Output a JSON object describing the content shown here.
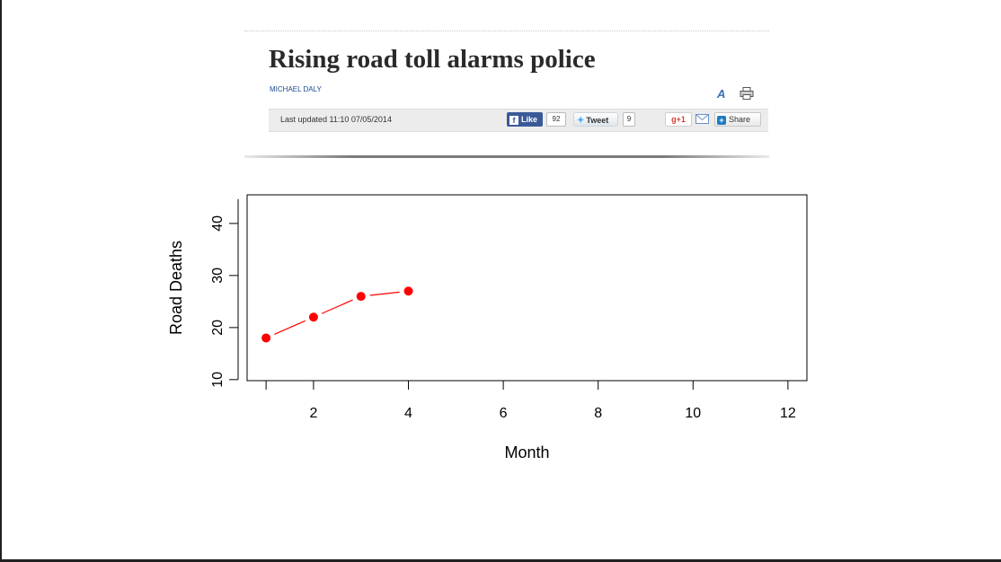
{
  "article": {
    "headline": "Rising road toll alarms police",
    "byline": "MICHAEL DALY",
    "last_updated": "Last updated 11:10 07/05/2014",
    "like_label": "Like",
    "like_count": "92",
    "tweet_label": "Tweet",
    "tweet_count": "9",
    "gplus_label": "+1",
    "share_label": "Share",
    "icons": [
      "font-size-icon",
      "print-icon",
      "facebook-icon",
      "twitter-icon",
      "google-plus-icon",
      "email-icon",
      "share-plus-icon"
    ]
  },
  "chart_data": {
    "type": "line",
    "xlabel": "Month",
    "ylabel": "Road Deaths",
    "xlim": [
      0.6,
      12.4
    ],
    "ylim": [
      9.8,
      45.5
    ],
    "x_ticks": [
      2,
      4,
      6,
      8,
      10,
      12
    ],
    "y_ticks": [
      10,
      20,
      30,
      40
    ],
    "series": [
      {
        "x": [
          1,
          2,
          3,
          4
        ],
        "y": [
          18,
          22,
          26,
          27
        ],
        "color": "#ff0000"
      }
    ],
    "grid": false,
    "legend": false
  }
}
